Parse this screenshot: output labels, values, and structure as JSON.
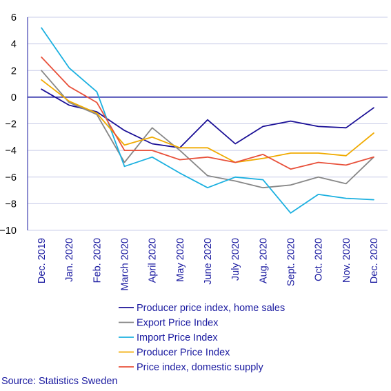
{
  "chart_data": {
    "type": "line",
    "categories": [
      "Dec. 2019",
      "Jan. 2020",
      "Feb. 2020",
      "March 2020",
      "April 2020",
      "May 2020",
      "June 2020",
      "July 2020",
      "Aug. 2020",
      "Sept. 2020",
      "Oct. 2020",
      "Nov. 2020",
      "Dec. 2020"
    ],
    "ylim": [
      -10,
      6
    ],
    "yticks": [
      6,
      4,
      2,
      0,
      -2,
      -4,
      -6,
      -8,
      -10
    ],
    "grid": "horizontal",
    "legend_position": "bottom",
    "series": [
      {
        "name": "Producer price index, home sales",
        "color": "#1a0f96",
        "values": [
          0.6,
          -0.6,
          -1.1,
          -2.5,
          -3.5,
          -3.8,
          -1.7,
          -3.5,
          -2.2,
          -1.8,
          -2.2,
          -2.3,
          -0.8
        ]
      },
      {
        "name": "Export Price Index",
        "color": "#878787",
        "values": [
          2.0,
          -0.4,
          -1.3,
          -4.9,
          -2.3,
          -4.0,
          -5.9,
          -6.3,
          -6.8,
          -6.6,
          -6.0,
          -6.5,
          -4.5
        ]
      },
      {
        "name": "Import Price Index",
        "color": "#1bb0e0",
        "values": [
          5.2,
          2.2,
          0.4,
          -5.2,
          -4.5,
          -5.7,
          -6.8,
          -6.0,
          -6.2,
          -8.7,
          -7.3,
          -7.6,
          -7.7
        ]
      },
      {
        "name": "Producer Price Index",
        "color": "#f0aa00",
        "values": [
          1.3,
          -0.3,
          -1.2,
          -3.6,
          -3.0,
          -3.8,
          -3.8,
          -4.9,
          -4.6,
          -4.2,
          -4.2,
          -4.4,
          -2.7
        ]
      },
      {
        "name": "Price index, domestic supply",
        "color": "#e8503a",
        "values": [
          3.0,
          0.8,
          -0.4,
          -4.0,
          -4.0,
          -4.7,
          -4.5,
          -4.9,
          -4.3,
          -5.4,
          -4.9,
          -5.1,
          -4.5
        ]
      }
    ]
  },
  "source": "Source: Statistics Sweden"
}
